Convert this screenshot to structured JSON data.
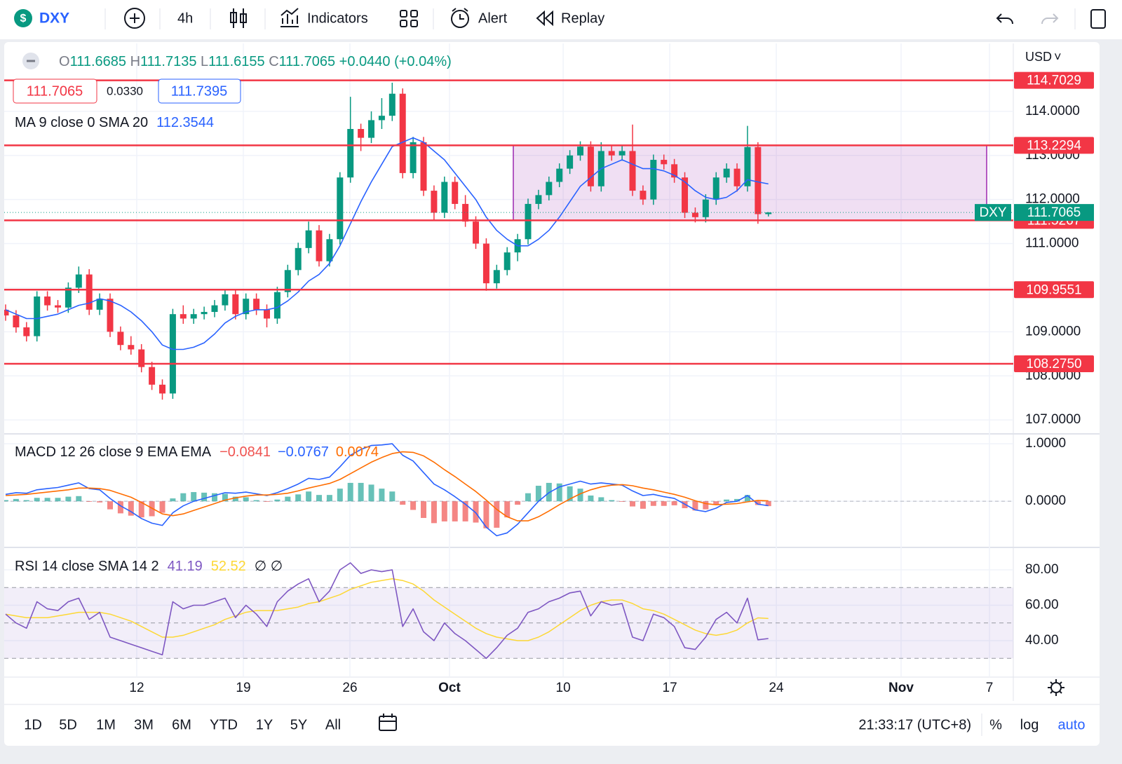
{
  "toolbar": {
    "symbol": "DXY",
    "interval": "4h",
    "indicators": "Indicators",
    "alert": "Alert",
    "replay": "Replay"
  },
  "chart_data": {
    "type": "candlestick",
    "currency": "USD",
    "legend": {
      "o": "O",
      "h": "H",
      "l": "L",
      "c": "C",
      "change": "+0.0440",
      "change_pct": "(+0.04%)",
      "spread": "0.0330",
      "ask": 111.7395
    },
    "up_color": "#089981",
    "down_color": "#f23645",
    "candles": [
      [
        109.5,
        109.62,
        109.25,
        109.37
      ],
      [
        109.37,
        109.49,
        108.98,
        109.1
      ],
      [
        109.1,
        109.22,
        108.78,
        108.9
      ],
      [
        108.9,
        109.92,
        108.78,
        109.8
      ],
      [
        109.8,
        109.92,
        109.48,
        109.6
      ],
      [
        109.6,
        109.72,
        109.43,
        109.55
      ],
      [
        109.55,
        110.12,
        109.43,
        110.0
      ],
      [
        110.0,
        110.48,
        109.88,
        110.3
      ],
      [
        110.3,
        110.42,
        109.38,
        109.5
      ],
      [
        109.5,
        109.87,
        109.38,
        109.75
      ],
      [
        109.75,
        109.87,
        108.88,
        109.0
      ],
      [
        109.0,
        109.12,
        108.58,
        108.7
      ],
      [
        108.7,
        108.9,
        108.48,
        108.6
      ],
      [
        108.6,
        108.72,
        108.08,
        108.2
      ],
      [
        108.2,
        108.32,
        107.68,
        107.8
      ],
      [
        107.8,
        107.92,
        107.46,
        107.6
      ],
      [
        107.6,
        109.52,
        107.48,
        109.4
      ],
      [
        109.4,
        109.6,
        109.18,
        109.3
      ],
      [
        109.3,
        109.52,
        109.18,
        109.4
      ],
      [
        109.4,
        109.57,
        109.28,
        109.45
      ],
      [
        109.45,
        109.72,
        109.33,
        109.6
      ],
      [
        109.6,
        109.97,
        109.48,
        109.85
      ],
      [
        109.85,
        109.97,
        109.28,
        109.4
      ],
      [
        109.4,
        109.87,
        109.28,
        109.75
      ],
      [
        109.75,
        109.87,
        109.38,
        109.5
      ],
      [
        109.5,
        109.62,
        109.1,
        109.3
      ],
      [
        109.3,
        110.02,
        109.18,
        109.9
      ],
      [
        109.9,
        110.52,
        109.78,
        110.4
      ],
      [
        110.4,
        111.02,
        110.28,
        110.9
      ],
      [
        110.9,
        111.5,
        110.78,
        111.3
      ],
      [
        111.3,
        111.42,
        110.48,
        110.6
      ],
      [
        110.6,
        111.22,
        110.48,
        111.1
      ],
      [
        111.1,
        112.62,
        110.98,
        112.5
      ],
      [
        112.5,
        114.33,
        112.38,
        113.6
      ],
      [
        113.6,
        113.72,
        113.1,
        113.4
      ],
      [
        113.4,
        114.0,
        113.28,
        113.8
      ],
      [
        113.8,
        114.3,
        113.6,
        113.9
      ],
      [
        113.9,
        114.65,
        113.78,
        114.4
      ],
      [
        114.4,
        114.52,
        112.48,
        112.6
      ],
      [
        112.6,
        113.42,
        112.48,
        113.3
      ],
      [
        113.3,
        113.42,
        112.08,
        112.2
      ],
      [
        112.2,
        112.32,
        111.52,
        111.7
      ],
      [
        111.7,
        112.52,
        111.58,
        112.4
      ],
      [
        112.4,
        112.52,
        111.78,
        111.9
      ],
      [
        111.9,
        112.1,
        111.38,
        111.5
      ],
      [
        111.5,
        111.62,
        110.88,
        111.0
      ],
      [
        111.0,
        111.12,
        109.93,
        110.1
      ],
      [
        110.1,
        110.52,
        109.98,
        110.4
      ],
      [
        110.4,
        110.92,
        110.28,
        110.8
      ],
      [
        110.8,
        111.22,
        110.6,
        111.1
      ],
      [
        111.1,
        112.02,
        110.98,
        111.9
      ],
      [
        111.9,
        112.22,
        111.78,
        112.1
      ],
      [
        112.1,
        112.52,
        111.98,
        112.4
      ],
      [
        112.4,
        112.82,
        112.28,
        112.7
      ],
      [
        112.7,
        113.12,
        112.58,
        113.0
      ],
      [
        113.0,
        113.32,
        112.88,
        113.2
      ],
      [
        113.2,
        113.32,
        112.18,
        112.3
      ],
      [
        112.3,
        113.3,
        112.18,
        113.1
      ],
      [
        113.1,
        113.22,
        112.88,
        113.0
      ],
      [
        113.0,
        113.22,
        112.88,
        113.1
      ],
      [
        113.1,
        113.7,
        112.08,
        112.2
      ],
      [
        112.2,
        112.32,
        111.88,
        112.0
      ],
      [
        112.0,
        113.02,
        111.88,
        112.9
      ],
      [
        112.9,
        113.02,
        112.68,
        112.8
      ],
      [
        112.8,
        112.92,
        112.38,
        112.5
      ],
      [
        112.5,
        112.62,
        111.58,
        111.7
      ],
      [
        111.7,
        111.82,
        111.48,
        111.6
      ],
      [
        111.6,
        112.12,
        111.48,
        112.0
      ],
      [
        112.0,
        112.62,
        111.88,
        112.5
      ],
      [
        112.5,
        112.82,
        112.38,
        112.7
      ],
      [
        112.7,
        112.82,
        112.18,
        112.3
      ],
      [
        112.3,
        113.67,
        112.18,
        113.19
      ],
      [
        113.19,
        113.3,
        111.45,
        111.6685
      ],
      [
        111.6685,
        111.7135,
        111.6155,
        111.7065
      ]
    ],
    "ma": {
      "label": "MA 9 close 0 SMA 20",
      "color": "#2962ff",
      "values": [
        109.5,
        109.4,
        109.3,
        109.3,
        109.35,
        109.4,
        109.5,
        109.6,
        109.65,
        109.75,
        109.7,
        109.6,
        109.45,
        109.25,
        109.0,
        108.7,
        108.6,
        108.6,
        108.65,
        108.75,
        108.95,
        109.2,
        109.35,
        109.45,
        109.5,
        109.5,
        109.55,
        109.7,
        109.9,
        110.15,
        110.3,
        110.55,
        110.95,
        111.45,
        111.95,
        112.4,
        112.8,
        113.2,
        113.3,
        113.4,
        113.3,
        113.1,
        112.9,
        112.6,
        112.3,
        112.0,
        111.6,
        111.3,
        111.1,
        110.95,
        110.95,
        111.1,
        111.3,
        111.6,
        111.95,
        112.3,
        112.5,
        112.7,
        112.8,
        112.9,
        112.8,
        112.7,
        112.7,
        112.65,
        112.55,
        112.4,
        112.2,
        112.05,
        112.0,
        112.05,
        112.2,
        112.45,
        112.4,
        112.3544
      ]
    },
    "ylim": [
      106.7,
      115.54
    ],
    "yticks": [
      {
        "value": 107,
        "label": "107.0000"
      },
      {
        "value": 108,
        "label": "108.0000"
      },
      {
        "value": 109,
        "label": "109.0000"
      },
      {
        "value": 110,
        "label": "110.0000"
      },
      {
        "value": 111,
        "label": "111.0000"
      },
      {
        "value": 112,
        "label": "112.0000"
      },
      {
        "value": 113,
        "label": "113.0000"
      },
      {
        "value": 114,
        "label": "114.0000"
      }
    ],
    "xlim": [
      -0.134,
      96.44
    ],
    "xticks": [
      {
        "value": 12.55,
        "label": "12"
      },
      {
        "value": 22.75,
        "label": "19"
      },
      {
        "value": 32.95,
        "label": "26"
      },
      {
        "value": 42.48,
        "label": "Oct"
      },
      {
        "value": 53.36,
        "label": "10"
      },
      {
        "value": 63.56,
        "label": "17"
      },
      {
        "value": 73.76,
        "label": "24"
      },
      {
        "value": 85.7,
        "label": "Nov"
      },
      {
        "value": 94.16,
        "label": "7"
      }
    ],
    "levels": [
      {
        "value": 114.7029,
        "label": "114.7029"
      },
      {
        "value": 113.2294,
        "label": "113.2294"
      },
      {
        "value": 111.5267,
        "label": "111.5267"
      },
      {
        "value": 109.9551,
        "label": "109.9551"
      },
      {
        "value": 108.275,
        "label": "108.2750"
      }
    ],
    "level_color": "#f23645",
    "zone_color": "#9c27b0",
    "last_label": "DXY",
    "macd": {
      "label": "MACD 12 26 close 9 EMA EMA",
      "ylim": [
        -0.79,
        1.16
      ],
      "yticks": [
        {
          "value": 0,
          "label": "0.0000"
        },
        {
          "value": 1,
          "label": "1.0000"
        }
      ],
      "macd_color": "#2962ff",
      "signal_color": "#ff6d00",
      "up_color": "#26a69a",
      "down_color": "#ef5350",
      "histogram": [
        0.02,
        0.04,
        0.02,
        0.06,
        0.06,
        0.06,
        0.08,
        0.09,
        -0.01,
        -0.02,
        -0.14,
        -0.21,
        -0.25,
        -0.28,
        -0.26,
        -0.2,
        0.05,
        0.14,
        0.16,
        0.15,
        0.14,
        0.13,
        0.08,
        0.07,
        0.02,
        -0.01,
        0.03,
        0.08,
        0.12,
        0.17,
        0.11,
        0.11,
        0.22,
        0.32,
        0.32,
        0.29,
        0.22,
        0.17,
        -0.06,
        -0.15,
        -0.29,
        -0.38,
        -0.35,
        -0.35,
        -0.35,
        -0.37,
        -0.47,
        -0.46,
        -0.28,
        -0.06,
        0.14,
        0.27,
        0.32,
        0.31,
        0.26,
        0.22,
        0.1,
        0.07,
        0.02,
        -0.01,
        -0.09,
        -0.13,
        -0.08,
        -0.08,
        -0.07,
        -0.12,
        -0.16,
        -0.14,
        -0.06,
        0.03,
        0.04,
        0.11,
        -0.065,
        -0.0841
      ],
      "macd": [
        0.12,
        0.15,
        0.14,
        0.2,
        0.22,
        0.24,
        0.28,
        0.32,
        0.22,
        0.2,
        0.05,
        -0.08,
        -0.18,
        -0.3,
        -0.38,
        -0.42,
        -0.2,
        -0.08,
        0.0,
        0.05,
        0.1,
        0.15,
        0.14,
        0.16,
        0.13,
        0.1,
        0.15,
        0.22,
        0.3,
        0.4,
        0.38,
        0.42,
        0.6,
        0.8,
        0.9,
        0.97,
        0.98,
        1.0,
        0.8,
        0.7,
        0.5,
        0.3,
        0.2,
        0.08,
        -0.05,
        -0.2,
        -0.45,
        -0.6,
        -0.55,
        -0.4,
        -0.2,
        0.0,
        0.15,
        0.25,
        0.3,
        0.35,
        0.3,
        0.32,
        0.3,
        0.28,
        0.18,
        0.1,
        0.12,
        0.08,
        0.05,
        -0.05,
        -0.15,
        -0.18,
        -0.12,
        -0.02,
        0.0,
        0.1,
        -0.05,
        -0.0767
      ],
      "signal": [
        0.1,
        0.11,
        0.12,
        0.14,
        0.16,
        0.18,
        0.2,
        0.23,
        0.23,
        0.22,
        0.19,
        0.13,
        0.07,
        -0.02,
        -0.12,
        -0.22,
        -0.25,
        -0.22,
        -0.16,
        -0.1,
        -0.04,
        0.02,
        0.06,
        0.09,
        0.11,
        0.11,
        0.12,
        0.14,
        0.18,
        0.23,
        0.27,
        0.31,
        0.38,
        0.48,
        0.58,
        0.68,
        0.76,
        0.83,
        0.86,
        0.85,
        0.79,
        0.68,
        0.55,
        0.43,
        0.3,
        0.17,
        0.02,
        -0.14,
        -0.27,
        -0.34,
        -0.34,
        -0.27,
        -0.17,
        -0.06,
        0.04,
        0.13,
        0.2,
        0.25,
        0.28,
        0.29,
        0.27,
        0.23,
        0.2,
        0.16,
        0.12,
        0.07,
        0.01,
        -0.04,
        -0.06,
        -0.05,
        -0.04,
        -0.01,
        0.015,
        0.0074
      ],
      "legend_values": [
        "−0.0841",
        "−0.0767",
        "0.0074"
      ]
    },
    "rsi": {
      "label": "RSI 14 close SMA 14 2",
      "ylim": [
        19.8,
        92.3
      ],
      "yticks": [
        {
          "value": 40,
          "label": "40.00"
        },
        {
          "value": 60,
          "label": "60.00"
        },
        {
          "value": 80,
          "label": "80.00"
        }
      ],
      "band": [
        30,
        70
      ],
      "midline": 50,
      "color": "#7e57c2",
      "ma_color": "#fdd835",
      "empty_marks": "∅ ∅",
      "values": [
        55,
        50,
        47,
        62,
        58,
        57,
        62,
        64,
        52,
        56,
        42,
        40,
        38,
        36,
        34,
        32,
        62,
        58,
        60,
        60,
        62,
        64,
        53,
        60,
        55,
        48,
        62,
        68,
        72,
        75,
        62,
        68,
        80,
        84,
        78,
        80,
        79,
        80,
        48,
        58,
        45,
        40,
        50,
        44,
        40,
        35,
        30,
        36,
        43,
        47,
        56,
        58,
        62,
        64,
        67,
        68,
        54,
        62,
        60,
        61,
        42,
        40,
        55,
        53,
        48,
        36,
        35,
        42,
        52,
        56,
        50,
        64,
        40.5,
        41.19
      ],
      "ma": [
        55,
        54,
        53,
        53,
        53,
        54,
        55,
        56,
        56,
        56,
        55,
        53,
        51,
        48,
        45,
        42,
        42,
        43,
        45,
        47,
        49,
        52,
        54,
        56,
        57,
        57,
        57,
        58,
        59,
        61,
        62,
        64,
        66,
        69,
        71,
        73,
        74,
        75,
        74,
        72,
        68,
        63,
        59,
        55,
        51,
        47,
        44,
        42,
        41,
        40,
        40,
        42,
        45,
        49,
        53,
        57,
        60,
        62,
        63,
        63,
        61,
        58,
        57,
        55,
        52,
        49,
        46,
        44,
        43,
        44,
        46,
        50,
        52.9,
        52.52
      ]
    }
  },
  "footer": {
    "ranges": [
      "1D",
      "5D",
      "1M",
      "3M",
      "6M",
      "YTD",
      "1Y",
      "5Y",
      "All"
    ],
    "clock": "21:33:17 (UTC+8)",
    "percent": "%",
    "log": "log",
    "auto": "auto"
  }
}
